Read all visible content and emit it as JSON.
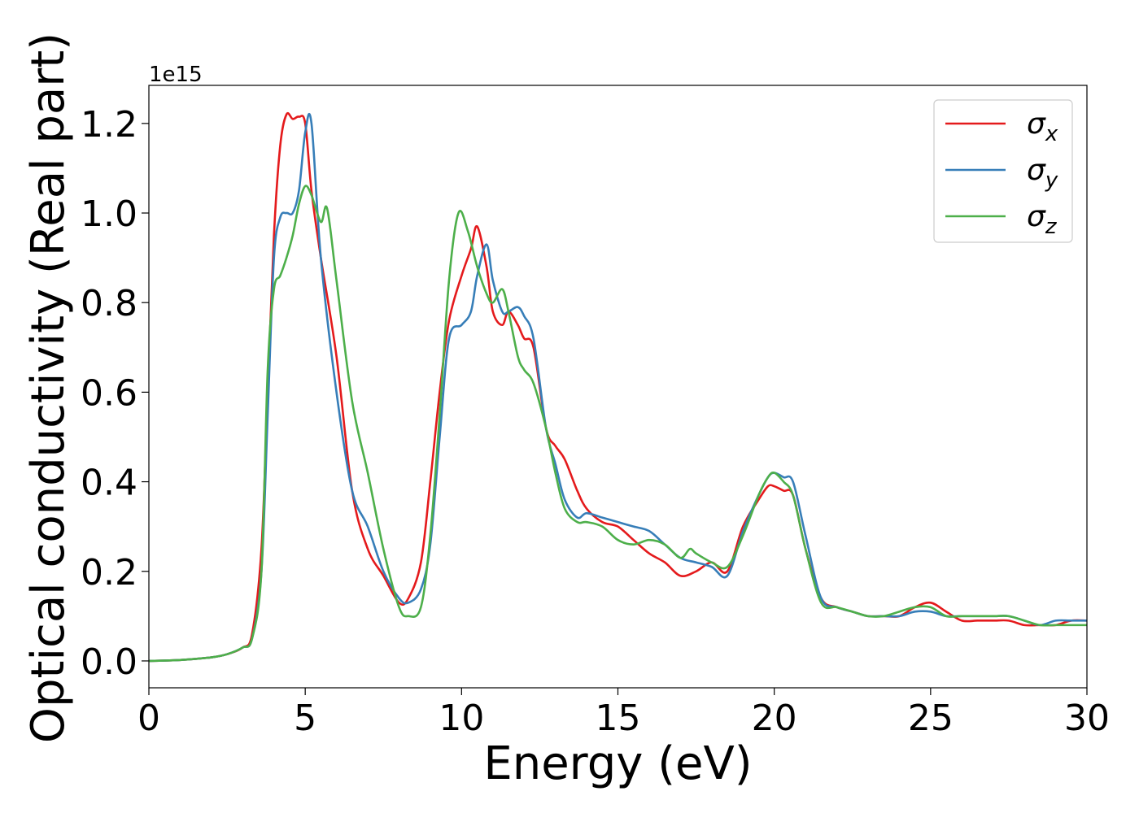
{
  "chart_data": {
    "type": "line",
    "xlabel": "Energy (eV)",
    "ylabel": "Optical conductivity (Real part)",
    "offset_label": "1e15",
    "xlim": [
      0,
      30
    ],
    "ylim": [
      -0.06,
      1.285
    ],
    "xticks": [
      "0",
      "5",
      "10",
      "15",
      "20",
      "25",
      "30"
    ],
    "yticks": [
      "0.0",
      "0.2",
      "0.4",
      "0.6",
      "0.8",
      "1.0",
      "1.2"
    ],
    "grid": false,
    "legend_position": "top-right",
    "series": [
      {
        "name": "σx",
        "symbol": "σ",
        "subscript": "x",
        "color": "#e41a1c",
        "x": [
          0,
          1,
          2,
          2.5,
          3,
          3.3,
          3.6,
          3.8,
          4.0,
          4.2,
          4.4,
          4.6,
          4.8,
          5.0,
          5.2,
          5.5,
          6.0,
          6.5,
          7.0,
          7.5,
          8.0,
          8.3,
          8.7,
          9.0,
          9.3,
          9.6,
          10.0,
          10.3,
          10.5,
          10.8,
          11.0,
          11.3,
          11.5,
          11.8,
          12.0,
          12.3,
          12.7,
          13.0,
          13.3,
          13.7,
          14.0,
          14.5,
          15.0,
          15.5,
          16.0,
          16.5,
          17.0,
          17.5,
          18.0,
          18.5,
          19.0,
          19.5,
          19.8,
          20.0,
          20.3,
          20.6,
          21.0,
          21.5,
          22.0,
          22.5,
          23.0,
          23.5,
          24.0,
          24.5,
          25.0,
          25.5,
          26.0,
          26.5,
          27.0,
          27.5,
          28.0,
          28.5,
          29.0,
          29.5,
          30.0
        ],
        "y": [
          0.0,
          0.002,
          0.008,
          0.015,
          0.03,
          0.06,
          0.25,
          0.6,
          0.95,
          1.15,
          1.22,
          1.21,
          1.215,
          1.2,
          1.05,
          0.9,
          0.68,
          0.38,
          0.25,
          0.19,
          0.13,
          0.14,
          0.22,
          0.4,
          0.6,
          0.76,
          0.86,
          0.92,
          0.97,
          0.88,
          0.78,
          0.75,
          0.78,
          0.75,
          0.72,
          0.7,
          0.52,
          0.48,
          0.45,
          0.38,
          0.34,
          0.31,
          0.3,
          0.27,
          0.24,
          0.22,
          0.19,
          0.2,
          0.22,
          0.2,
          0.3,
          0.36,
          0.39,
          0.39,
          0.38,
          0.37,
          0.25,
          0.14,
          0.12,
          0.11,
          0.1,
          0.1,
          0.1,
          0.12,
          0.13,
          0.11,
          0.09,
          0.09,
          0.09,
          0.09,
          0.08,
          0.08,
          0.08,
          0.09,
          0.09
        ]
      },
      {
        "name": "σy",
        "symbol": "σ",
        "subscript": "y",
        "color": "#377eb8",
        "x": [
          0,
          1,
          2,
          2.5,
          3,
          3.3,
          3.6,
          3.8,
          4.0,
          4.2,
          4.4,
          4.6,
          4.8,
          5.0,
          5.2,
          5.5,
          6.0,
          6.5,
          7.0,
          7.5,
          8.0,
          8.3,
          8.7,
          9.0,
          9.3,
          9.6,
          10.0,
          10.3,
          10.5,
          10.8,
          11.0,
          11.3,
          11.5,
          11.8,
          12.0,
          12.3,
          12.7,
          13.0,
          13.3,
          13.7,
          14.0,
          14.5,
          15.0,
          15.5,
          16.0,
          16.5,
          17.0,
          17.5,
          18.0,
          18.5,
          19.0,
          19.5,
          19.8,
          20.0,
          20.3,
          20.6,
          21.0,
          21.5,
          22.0,
          22.5,
          23.0,
          23.5,
          24.0,
          24.5,
          25.0,
          25.5,
          26.0,
          26.5,
          27.0,
          27.5,
          28.0,
          28.5,
          29.0,
          29.5,
          30.0
        ],
        "y": [
          0.0,
          0.002,
          0.008,
          0.015,
          0.03,
          0.05,
          0.2,
          0.55,
          0.9,
          0.99,
          1.0,
          1.0,
          1.05,
          1.18,
          1.2,
          0.9,
          0.6,
          0.38,
          0.3,
          0.2,
          0.14,
          0.13,
          0.16,
          0.26,
          0.5,
          0.72,
          0.75,
          0.78,
          0.86,
          0.93,
          0.85,
          0.78,
          0.78,
          0.79,
          0.77,
          0.72,
          0.52,
          0.44,
          0.36,
          0.32,
          0.33,
          0.32,
          0.31,
          0.3,
          0.29,
          0.26,
          0.23,
          0.22,
          0.21,
          0.19,
          0.29,
          0.37,
          0.41,
          0.42,
          0.41,
          0.4,
          0.28,
          0.14,
          0.12,
          0.11,
          0.1,
          0.1,
          0.1,
          0.11,
          0.11,
          0.1,
          0.1,
          0.1,
          0.1,
          0.1,
          0.09,
          0.08,
          0.09,
          0.09,
          0.09
        ]
      },
      {
        "name": "σz",
        "symbol": "σ",
        "subscript": "z",
        "color": "#4daf4a",
        "x": [
          0,
          1,
          2,
          2.5,
          3,
          3.3,
          3.6,
          3.8,
          4.0,
          4.2,
          4.4,
          4.6,
          4.8,
          5.0,
          5.2,
          5.5,
          5.7,
          6.0,
          6.5,
          7.0,
          7.5,
          8.0,
          8.3,
          8.7,
          9.0,
          9.3,
          9.6,
          9.9,
          10.2,
          10.5,
          10.8,
          11.0,
          11.3,
          11.5,
          11.8,
          12.0,
          12.3,
          12.7,
          13.0,
          13.3,
          13.7,
          14.0,
          14.5,
          15.0,
          15.5,
          16.0,
          16.5,
          17.0,
          17.3,
          17.5,
          18.0,
          18.5,
          19.0,
          19.5,
          19.8,
          20.0,
          20.3,
          20.6,
          21.0,
          21.5,
          22.0,
          22.5,
          23.0,
          23.5,
          24.0,
          24.5,
          25.0,
          25.5,
          26.0,
          26.5,
          27.0,
          27.5,
          28.0,
          28.5,
          29.0,
          29.5,
          30.0
        ],
        "y": [
          0.0,
          0.002,
          0.008,
          0.015,
          0.03,
          0.05,
          0.2,
          0.65,
          0.83,
          0.86,
          0.9,
          0.95,
          1.02,
          1.06,
          1.04,
          0.98,
          1.01,
          0.85,
          0.58,
          0.42,
          0.25,
          0.12,
          0.1,
          0.12,
          0.28,
          0.55,
          0.85,
          1.0,
          0.96,
          0.88,
          0.82,
          0.8,
          0.83,
          0.78,
          0.68,
          0.65,
          0.62,
          0.52,
          0.42,
          0.34,
          0.31,
          0.31,
          0.3,
          0.27,
          0.26,
          0.27,
          0.26,
          0.23,
          0.25,
          0.24,
          0.22,
          0.21,
          0.28,
          0.37,
          0.41,
          0.42,
          0.4,
          0.37,
          0.25,
          0.13,
          0.12,
          0.11,
          0.1,
          0.1,
          0.11,
          0.12,
          0.12,
          0.1,
          0.1,
          0.1,
          0.1,
          0.1,
          0.09,
          0.08,
          0.08,
          0.08,
          0.08
        ]
      }
    ]
  }
}
